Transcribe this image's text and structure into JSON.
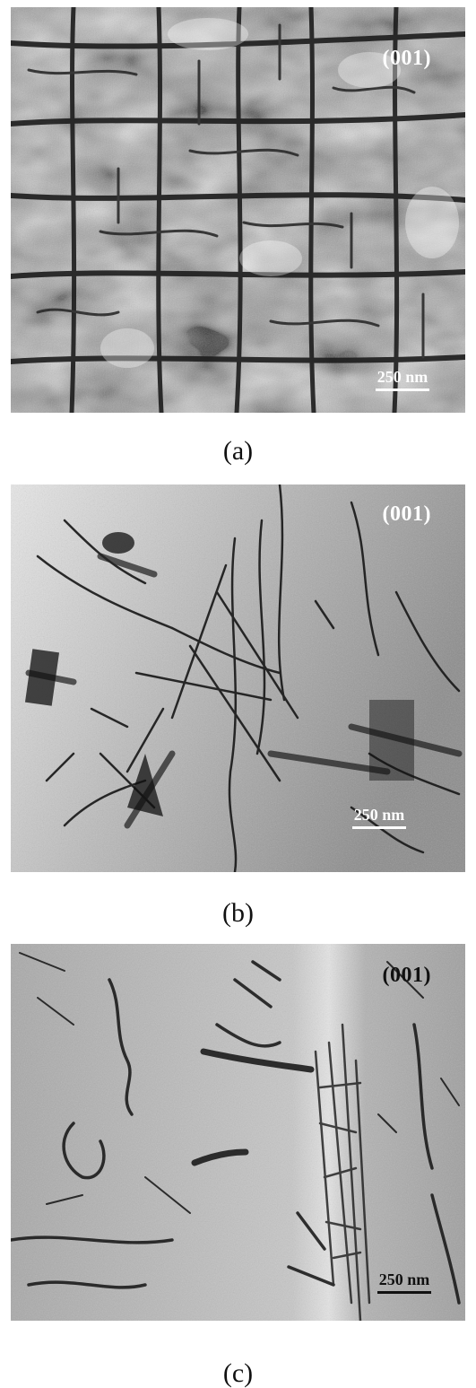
{
  "panels": [
    {
      "orientation": "(001)",
      "scale": "250 nm",
      "label": "(a)",
      "overlay_color": "#ffffff",
      "tone": "light-contrast"
    },
    {
      "orientation": "(001)",
      "scale": "250 nm",
      "label": "(b)",
      "overlay_color": "#ffffff",
      "tone": "mid-contrast"
    },
    {
      "orientation": "(001)",
      "scale": "250 nm",
      "label": "(c)",
      "overlay_color": "#111111",
      "tone": "grey-low-contrast"
    }
  ]
}
